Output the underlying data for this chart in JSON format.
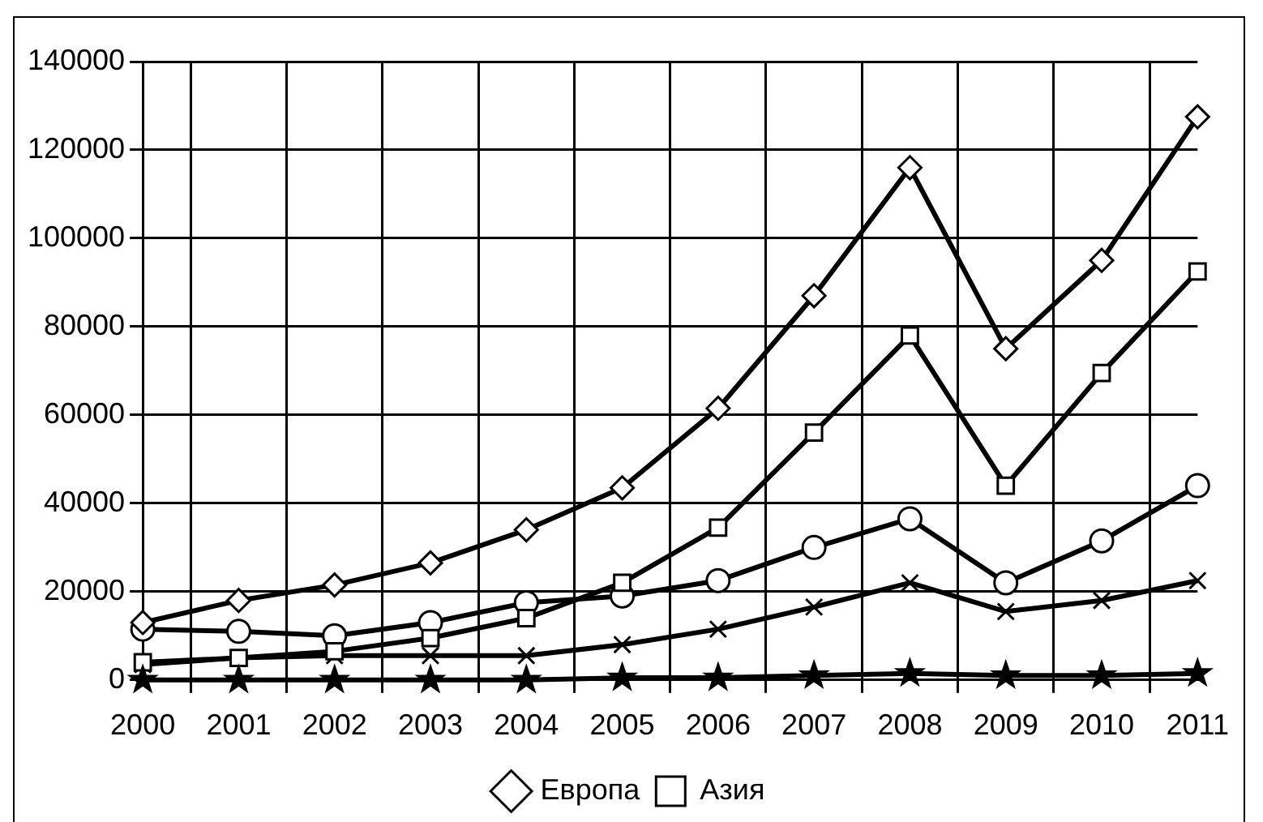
{
  "chart_data": {
    "type": "line",
    "categories": [
      "2000",
      "2001",
      "2002",
      "2003",
      "2004",
      "2005",
      "2006",
      "2007",
      "2008",
      "2009",
      "2010",
      "2011"
    ],
    "series": [
      {
        "name": "Европа",
        "color": "#000000",
        "marker": "diamond",
        "values": [
          13000,
          18000,
          21500,
          26500,
          34000,
          43500,
          61500,
          87000,
          116000,
          75000,
          95000,
          127500
        ]
      },
      {
        "name": "Азия",
        "color": "#000000",
        "marker": "square",
        "values": [
          4000,
          5000,
          6500,
          9500,
          14000,
          22000,
          34500,
          56000,
          78000,
          44000,
          69500,
          92500
        ]
      },
      {
        "color": "#000000",
        "marker": "circle",
        "values": [
          11500,
          11000,
          10000,
          13000,
          17500,
          19000,
          22500,
          30000,
          36500,
          22000,
          31500,
          44000
        ]
      },
      {
        "color": "#000000",
        "marker": "cross",
        "values": [
          3500,
          5000,
          5500,
          5500,
          5500,
          8000,
          11500,
          16500,
          22000,
          15500,
          18000,
          22500
        ]
      },
      {
        "color": "#000000",
        "marker": "star",
        "values": [
          0,
          0,
          0,
          0,
          0,
          500,
          500,
          1000,
          1500,
          1000,
          1000,
          1500
        ]
      }
    ],
    "ylim": [
      0,
      140000
    ],
    "yticks": [
      0,
      20000,
      40000,
      60000,
      80000,
      100000,
      120000,
      140000
    ],
    "grid": true,
    "legend": "bottom",
    "line_style": "solid"
  }
}
